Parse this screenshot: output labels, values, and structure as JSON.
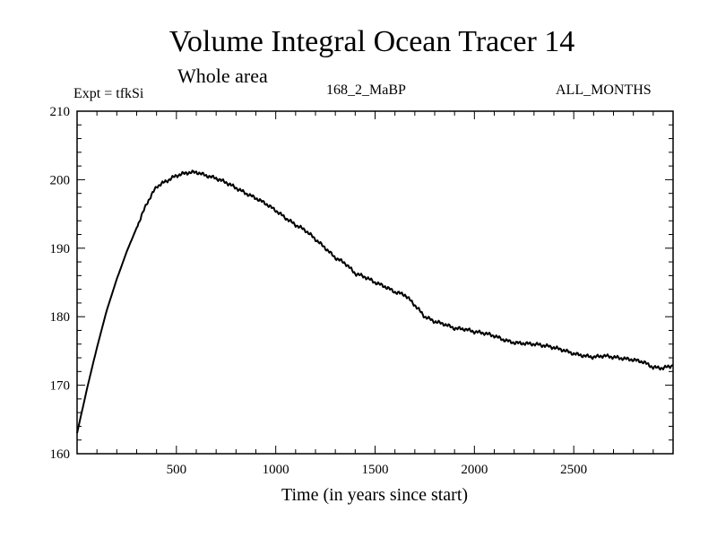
{
  "chart_data": {
    "type": "line",
    "title": "Volume Integral Ocean Tracer 14",
    "subtitle": "Whole area",
    "annotations": {
      "expt": "Expt = tfkSi",
      "run": "168_2_MaBP",
      "months": "ALL_MONTHS"
    },
    "xlabel": "Time (in years since start)",
    "ylabel": "",
    "xlim": [
      0,
      3000
    ],
    "ylim": [
      160,
      210
    ],
    "xticks": [
      500,
      1000,
      1500,
      2000,
      2500
    ],
    "yticks": [
      160,
      170,
      180,
      190,
      200,
      210
    ],
    "grid": false,
    "series": [
      {
        "x": [
          0,
          50,
          100,
          150,
          200,
          250,
          300,
          350,
          400,
          450,
          500,
          550,
          600,
          650,
          700,
          750,
          800,
          850,
          900,
          950,
          1000,
          1050,
          1100,
          1150,
          1200,
          1250,
          1300,
          1350,
          1400,
          1450,
          1500,
          1550,
          1600,
          1650,
          1700,
          1750,
          1800,
          1850,
          1900,
          1950,
          2000,
          2050,
          2100,
          2150,
          2200,
          2250,
          2300,
          2350,
          2400,
          2450,
          2500,
          2550,
          2600,
          2650,
          2700,
          2750,
          2800,
          2850,
          2900,
          2950,
          3000
        ],
        "y": [
          163,
          169.5,
          175.5,
          181,
          185.5,
          189.5,
          193,
          196.5,
          199,
          199.8,
          200.6,
          201,
          201.1,
          200.6,
          200.2,
          199.6,
          198.8,
          198,
          197.3,
          196.5,
          195.5,
          194.4,
          193.4,
          192.6,
          191.3,
          190,
          188.6,
          187.8,
          186.3,
          185.8,
          185,
          184.4,
          183.6,
          183.2,
          181.7,
          180,
          179.3,
          178.9,
          178.3,
          178.2,
          177.8,
          177.6,
          177.2,
          176.6,
          176.2,
          176.1,
          176,
          175.8,
          175.5,
          175.1,
          174.6,
          174.3,
          174.1,
          174.3,
          174.1,
          173.9,
          173.7,
          173.4,
          172.6,
          172.5,
          172.9
        ]
      }
    ]
  }
}
